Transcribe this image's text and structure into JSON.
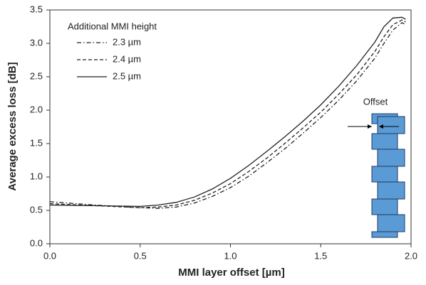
{
  "chart_data": {
    "type": "line",
    "x_label": "MMI layer offset [µm]",
    "y_label": "Average excess loss [dB]",
    "legend_title": "Additional MMI height",
    "annotations": [
      "Offset"
    ],
    "x": [
      0,
      0.25,
      0.5,
      0.6,
      0.7,
      0.8,
      0.9,
      1.0,
      1.1,
      1.2,
      1.3,
      1.4,
      1.5,
      1.6,
      1.7,
      1.8,
      1.85,
      1.9,
      1.95,
      1.97
    ],
    "series": [
      {
        "name": "2.3 µm",
        "color": "#222222",
        "dash": "dashdot",
        "values": [
          0.63,
          0.58,
          0.54,
          0.53,
          0.55,
          0.61,
          0.71,
          0.84,
          1.01,
          1.21,
          1.42,
          1.65,
          1.89,
          2.15,
          2.44,
          2.78,
          3.0,
          3.2,
          3.31,
          3.28
        ]
      },
      {
        "name": "2.4 µm",
        "color": "#222222",
        "dash": "dashed",
        "values": [
          0.6,
          0.57,
          0.54,
          0.55,
          0.58,
          0.65,
          0.76,
          0.9,
          1.08,
          1.28,
          1.5,
          1.73,
          1.97,
          2.24,
          2.53,
          2.88,
          3.1,
          3.28,
          3.35,
          3.32
        ]
      },
      {
        "name": "2.5 µm",
        "color": "#222222",
        "dash": "solid",
        "values": [
          0.58,
          0.57,
          0.56,
          0.58,
          0.62,
          0.7,
          0.82,
          0.98,
          1.17,
          1.38,
          1.6,
          1.83,
          2.08,
          2.36,
          2.67,
          3.02,
          3.25,
          3.38,
          3.39,
          3.36
        ]
      }
    ],
    "xlim": [
      0,
      2
    ],
    "xticks": [
      {
        "value": 0,
        "label": "0.0"
      },
      0.5,
      {
        "value": 1,
        "label": "1.0"
      },
      1.5,
      {
        "value": 2,
        "label": "2.0"
      }
    ],
    "ylim": [
      0,
      3.5
    ],
    "yticks": [
      {
        "value": 0,
        "label": "0.0"
      },
      0.5,
      {
        "value": 1,
        "label": "1.0"
      },
      1.5,
      {
        "value": 2,
        "label": "2.0"
      },
      2.5,
      {
        "value": 3,
        "label": "3.0"
      },
      3.5
    ],
    "grid": false
  }
}
